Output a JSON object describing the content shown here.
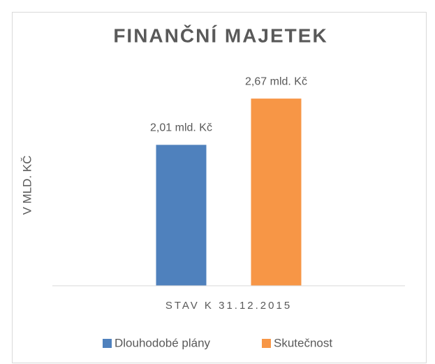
{
  "chart_data": {
    "type": "bar",
    "title": "FINANČNÍ MAJETEK",
    "y_label": "V MLD. KČ",
    "categories": [
      "STAV K 31.12.2015"
    ],
    "series": [
      {
        "name": "Dlouhodobé plány",
        "color": "#4f81bd",
        "values": [
          2.01
        ],
        "value_labels": [
          "2,01 mld. Kč"
        ]
      },
      {
        "name": "Skutečnost",
        "color": "#f79646",
        "values": [
          2.67
        ],
        "value_labels": [
          "2,67 mld. Kč"
        ]
      }
    ],
    "ylim": [
      0,
      3
    ],
    "grid": false,
    "legend": "bottom"
  }
}
